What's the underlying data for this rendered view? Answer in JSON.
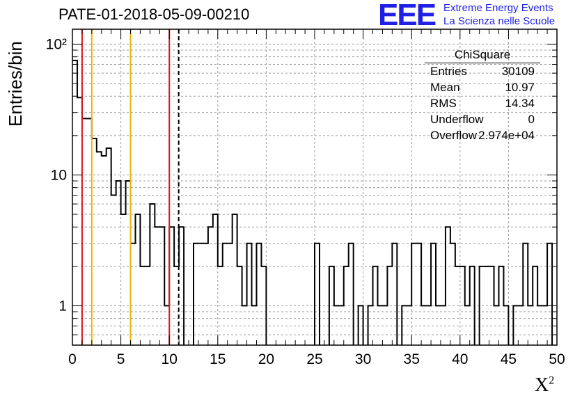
{
  "header": {
    "title": "PATE-01-2018-05-09-00210",
    "logo_text": "EEE",
    "org_line1": "Extreme Energy Events",
    "org_line2": "La Scienza nelle Scuole"
  },
  "stats": {
    "title": "ChiSquare",
    "rows": [
      {
        "key": "Entries",
        "value": "30109"
      },
      {
        "key": "Mean",
        "value": "10.97"
      },
      {
        "key": "RMS",
        "value": "14.34"
      },
      {
        "key": "Underflow",
        "value": "0"
      },
      {
        "key": "Overflow",
        "value": "2.974e+04"
      }
    ]
  },
  "chart_data": {
    "type": "bar",
    "histogram_style": "step",
    "title": "PATE-01-2018-05-09-00210",
    "xlabel": "X²",
    "ylabel": "Entries/bin",
    "xlim": [
      0,
      50
    ],
    "ylim": [
      0.5,
      130
    ],
    "y_scale": "log",
    "grid": true,
    "bin_width": 0.5,
    "x_ticks": [
      "0",
      "5",
      "10",
      "15",
      "20",
      "25",
      "30",
      "35",
      "40",
      "45",
      "50"
    ],
    "y_ticks": [
      "1",
      "10",
      "10²"
    ],
    "values": [
      75,
      39,
      27,
      27,
      19,
      15,
      14,
      16,
      7,
      9,
      5,
      9,
      3,
      5,
      2,
      2,
      6,
      4,
      4,
      1,
      4,
      2,
      4,
      0,
      0,
      3,
      3,
      3,
      4,
      5,
      2,
      3,
      3,
      5,
      2,
      1,
      3,
      1,
      3,
      2,
      0,
      0,
      0,
      0,
      0,
      0,
      0,
      0,
      0,
      0,
      3,
      0,
      0,
      2,
      1,
      1,
      2,
      3,
      0,
      1,
      0,
      1,
      2,
      1,
      1,
      2,
      3,
      0,
      1,
      1,
      3,
      3,
      1,
      1,
      3,
      1,
      1,
      4,
      3,
      2,
      2,
      1,
      2,
      0,
      2,
      2,
      2,
      1,
      2,
      1,
      0,
      1,
      1,
      3,
      1,
      2,
      1,
      1,
      3,
      0
    ],
    "vertical_lines": [
      {
        "x": 1,
        "color": "#e0161a",
        "style": "solid"
      },
      {
        "x": 2,
        "color": "#f0b400",
        "style": "solid"
      },
      {
        "x": 6,
        "color": "#f0b400",
        "style": "solid"
      },
      {
        "x": 10,
        "color": "#e0161a",
        "style": "solid"
      },
      {
        "x": 10.97,
        "color": "#000000",
        "style": "dashed"
      }
    ]
  }
}
